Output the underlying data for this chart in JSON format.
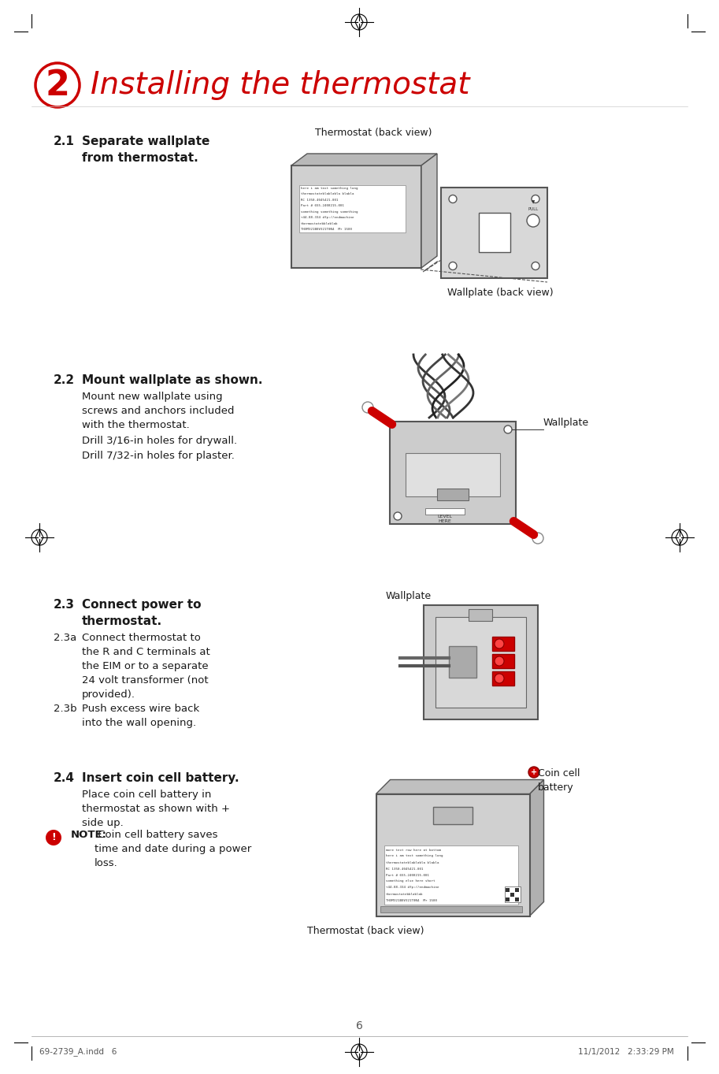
{
  "bg_color": "#ffffff",
  "title": "Installing the thermostat",
  "title_color": "#cc0000",
  "title_fontsize": 28,
  "step_num": "2",
  "step_circle_color": "#cc0000",
  "text_color": "#1a1a1a",
  "header_fontsize": 11,
  "body_fontsize": 9.5,
  "note_fontsize": 9.5,
  "page_num": "6",
  "footer_left": "69-2739_A.indd   6",
  "footer_right": "11/1/2012   2:33:29 PM",
  "section_21_header": "2.1  Separate wallplate\n       from thermostat.",
  "section_22_header": "2.2  Mount wallplate as shown.",
  "section_22_body1": "Mount new wallplate using\nscrews and anchors included\nwith the thermostat.",
  "section_22_body2": "Drill 3/16-in holes for drywall.",
  "section_22_body3": "Drill 7/32-in holes for plaster.",
  "section_23_header": "2.3  Connect power to\n       thermostat.",
  "section_23a": "2.3a  Connect thermostat to\n        the R and C terminals at\n        the EIM or to a separate\n        24 volt transformer (not\n        provided).",
  "section_23b": "2.3b  Push excess wire back\n        into the wall opening.",
  "section_24_header": "2.4  Insert coin cell battery.",
  "section_24_body": "Place coin cell battery in\nthermostat as shown with +\nside up.",
  "note_label": "NOTE:",
  "note_body": "Coin cell battery saves\ntime and date during a power\nloss.",
  "label_thermostat_back1": "Thermostat (back view)",
  "label_wallplate_back": "Wallplate (back view)",
  "label_wallplate1": "Wallplate",
  "label_wallplate2": "Wallplate",
  "label_coin_cell": "Coin cell\nbattery",
  "label_thermostat_back2": "Thermostat (back view)"
}
